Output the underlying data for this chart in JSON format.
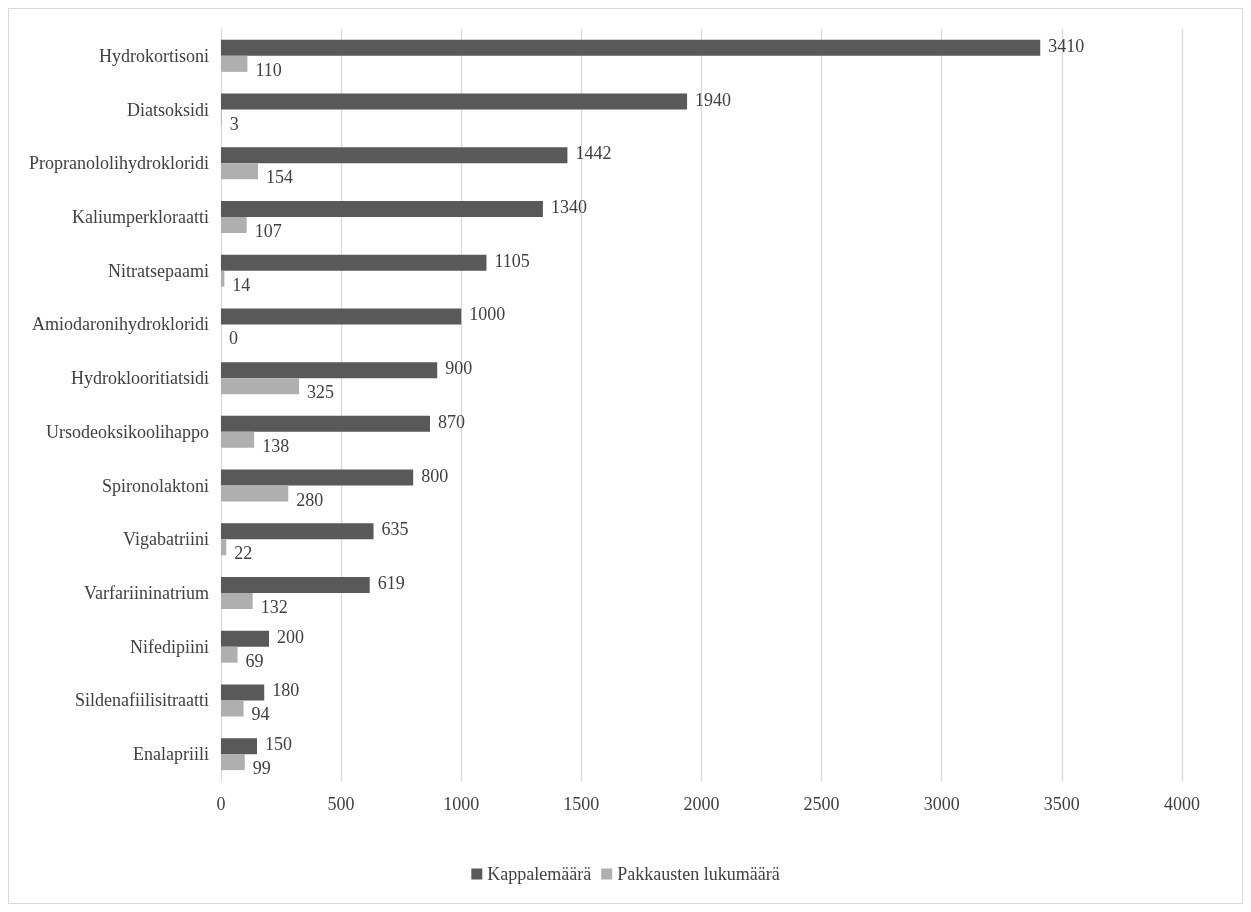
{
  "chart_data": {
    "type": "bar",
    "orientation": "horizontal",
    "categories": [
      "Hydrokortisoni",
      "Diatsoksidi",
      "Propranololihydrokloridi",
      "Kaliumperkloraatti",
      "Nitratsepaami",
      "Amiodaronihydrokloridi",
      "Hydroklooritiatsidi",
      "Ursodeoksikoolihappo",
      "Spironolaktoni",
      "Vigabatriini",
      "Varfariininatrium",
      "Nifedipiini",
      "Sildenafiilisitraatti",
      "Enalapriili"
    ],
    "series": [
      {
        "name": "Kappalemäärä",
        "color": "#595959",
        "values": [
          3410,
          1940,
          1442,
          1340,
          1105,
          1000,
          900,
          870,
          800,
          635,
          619,
          200,
          180,
          150
        ]
      },
      {
        "name": "Pakkausten lukumäärä",
        "color": "#afafaf",
        "values": [
          110,
          3,
          154,
          107,
          14,
          0,
          325,
          138,
          280,
          22,
          132,
          69,
          94,
          99
        ]
      }
    ],
    "xlim": [
      0,
      4000
    ],
    "xticks": [
      0,
      500,
      1000,
      1500,
      2000,
      2500,
      3000,
      3500,
      4000
    ],
    "grid": "x",
    "legend": "bottom",
    "data_labels": true
  }
}
